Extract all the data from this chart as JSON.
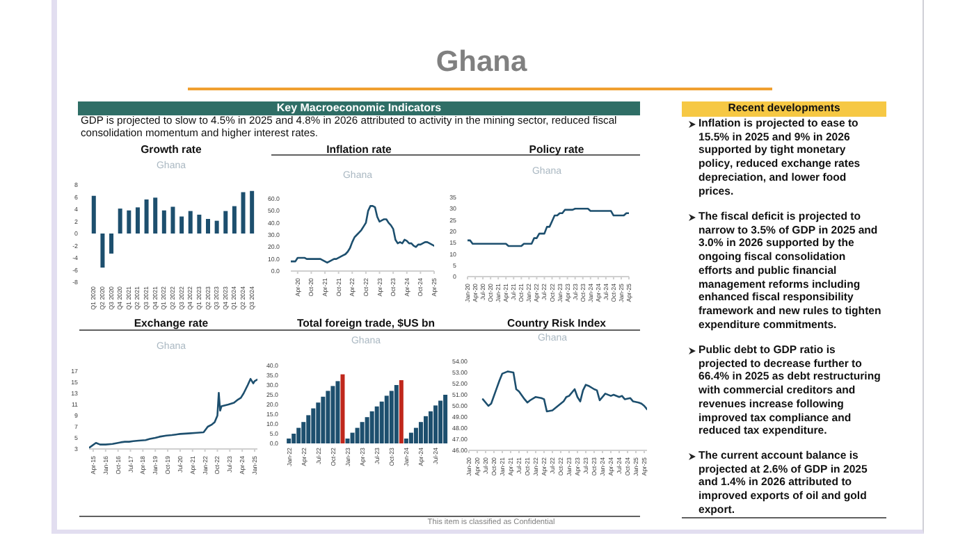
{
  "chart_data": [
    {
      "type": "other",
      "title": "Ghana",
      "subtitle": "Key Macroeconomic Indicators",
      "annotations": [
        "GDP is projected to slow to 4.5% in 2025 and 4.8% in 2026 attributed to activity in the mining sector, reduced fiscal consolidation momentum and higher interest rates.",
        "This item is classified as Confidential"
      ]
    },
    {
      "type": "bar",
      "title": "Growth rate",
      "annotations": [
        "Ghana"
      ],
      "categories": [
        "Q1 2020",
        "Q2 2020",
        "Q3 2020",
        "Q4 2020",
        "Q1 2021",
        "Q2 2021",
        "Q3 2021",
        "Q4 2021",
        "Q1 2022",
        "Q2 2022",
        "Q3 2022",
        "Q4 2022",
        "Q1 2023",
        "Q2 2023",
        "Q3 2023",
        "Q4 2023",
        "Q1 2024",
        "Q2 2024",
        "Q3 2024"
      ],
      "values": [
        6.2,
        -5.6,
        -3.3,
        4.1,
        3.8,
        4.3,
        5.6,
        5.9,
        3.8,
        4.4,
        2.8,
        3.7,
        3.1,
        2.4,
        2.1,
        3.7,
        4.5,
        6.8,
        7.0
      ],
      "color": "#1d4f6e",
      "ylim": [
        -8,
        8
      ],
      "yticks": [
        -8,
        -6,
        -4,
        -2,
        0,
        2,
        4,
        6,
        8
      ]
    },
    {
      "type": "line",
      "title": "Inflation rate",
      "annotations": [
        "Ghana"
      ],
      "x": [
        "2020-01",
        "2020-02",
        "2020-03",
        "2020-04",
        "2020-05",
        "2020-06",
        "2020-07",
        "2020-08",
        "2020-09",
        "2020-10",
        "2020-11",
        "2020-12",
        "2021-01",
        "2021-02",
        "2021-03",
        "2021-04",
        "2021-05",
        "2021-06",
        "2021-07",
        "2021-08",
        "2021-09",
        "2021-10",
        "2021-11",
        "2021-12",
        "2022-01",
        "2022-02",
        "2022-03",
        "2022-04",
        "2022-05",
        "2022-06",
        "2022-07",
        "2022-08",
        "2022-09",
        "2022-10",
        "2022-11",
        "2022-12",
        "2023-01",
        "2023-02",
        "2023-03",
        "2023-04",
        "2023-05",
        "2023-06",
        "2023-07",
        "2023-08",
        "2023-09",
        "2023-10",
        "2023-11",
        "2023-12",
        "2024-01",
        "2024-02",
        "2024-03",
        "2024-04",
        "2024-05",
        "2024-06",
        "2024-07",
        "2024-08",
        "2024-09",
        "2024-10",
        "2024-11",
        "2024-12",
        "2025-01",
        "2025-02",
        "2025-03",
        "2025-04"
      ],
      "values": [
        8,
        8,
        8,
        11,
        11,
        11,
        11,
        10,
        10,
        10,
        10,
        10,
        10,
        10,
        9,
        8,
        7,
        8,
        9,
        10,
        10,
        11,
        12,
        13,
        14,
        16,
        19,
        24,
        28,
        30,
        32,
        34,
        37,
        40,
        50,
        54,
        54,
        53,
        45,
        41,
        42,
        43,
        43,
        40,
        38,
        35,
        26,
        23,
        24,
        23,
        26,
        25,
        23,
        23,
        21,
        20,
        22,
        22,
        23,
        24,
        24,
        23,
        22,
        21
      ],
      "color": "#1d4f6e",
      "xlim": [
        "2020-01",
        "2025-04"
      ],
      "xticks": [
        {
          "value": "2020-04",
          "label": "Apr-20"
        },
        {
          "value": "2020-10",
          "label": "Oct-20"
        },
        {
          "value": "2021-04",
          "label": "Apr-21"
        },
        {
          "value": "2021-10",
          "label": "Oct-21"
        },
        {
          "value": "2022-04",
          "label": "Apr-22"
        },
        {
          "value": "2022-10",
          "label": "Oct-22"
        },
        {
          "value": "2023-04",
          "label": "Apr-23"
        },
        {
          "value": "2023-10",
          "label": "Oct-23"
        },
        {
          "value": "2024-04",
          "label": "Apr-24"
        },
        {
          "value": "2024-10",
          "label": "Oct-24"
        },
        {
          "value": "2025-04",
          "label": "Apr-25"
        }
      ],
      "ylim": [
        0,
        60
      ],
      "yticks": [
        {
          "value": 0,
          "label": "0.0"
        },
        {
          "value": 10,
          "label": "10.0"
        },
        {
          "value": 20,
          "label": "20.0"
        },
        {
          "value": 30,
          "label": "30.0"
        },
        {
          "value": 40,
          "label": "40.0"
        },
        {
          "value": 50,
          "label": "50.0"
        },
        {
          "value": 60,
          "label": "60.0"
        }
      ]
    },
    {
      "type": "line",
      "title": "Policy rate",
      "annotations": [
        "Ghana"
      ],
      "x": [
        "2020-01",
        "2020-02",
        "2020-03",
        "2020-04",
        "2020-05",
        "2020-06",
        "2020-07",
        "2020-08",
        "2020-09",
        "2020-10",
        "2020-11",
        "2020-12",
        "2021-01",
        "2021-02",
        "2021-03",
        "2021-04",
        "2021-05",
        "2021-06",
        "2021-07",
        "2021-08",
        "2021-09",
        "2021-10",
        "2021-11",
        "2021-12",
        "2022-01",
        "2022-02",
        "2022-03",
        "2022-04",
        "2022-05",
        "2022-06",
        "2022-07",
        "2022-08",
        "2022-09",
        "2022-10",
        "2022-11",
        "2022-12",
        "2023-01",
        "2023-02",
        "2023-03",
        "2023-04",
        "2023-05",
        "2023-06",
        "2023-07",
        "2023-08",
        "2023-09",
        "2023-10",
        "2023-11",
        "2023-12",
        "2024-01",
        "2024-02",
        "2024-03",
        "2024-04",
        "2024-05",
        "2024-06",
        "2024-07",
        "2024-08",
        "2024-09",
        "2024-10",
        "2024-11",
        "2024-12",
        "2025-01",
        "2025-02",
        "2025-03",
        "2025-04"
      ],
      "values": [
        16,
        16,
        14.5,
        14.5,
        14.5,
        14.5,
        14.5,
        14.5,
        14.5,
        14.5,
        14.5,
        14.5,
        14.5,
        14.5,
        14.5,
        14.5,
        13.5,
        13.5,
        13.5,
        13.5,
        13.5,
        13.5,
        14.5,
        14.5,
        14.5,
        14.5,
        17,
        17,
        19,
        19,
        19,
        22,
        22,
        24.5,
        27,
        27,
        28,
        28,
        29.5,
        29.5,
        29.5,
        29.5,
        30,
        30,
        30,
        30,
        30,
        30,
        29,
        29,
        29,
        29,
        29,
        29,
        29,
        29,
        29,
        27,
        27,
        27,
        27,
        27,
        28,
        28
      ],
      "color": "#1d4f6e",
      "xlim": [
        "2020-01",
        "2025-04"
      ],
      "xticks": [
        {
          "value": "2020-01",
          "label": "Jan-20"
        },
        {
          "value": "2020-04",
          "label": "Apr-20"
        },
        {
          "value": "2020-07",
          "label": "Jul-20"
        },
        {
          "value": "2020-10",
          "label": "Oct-20"
        },
        {
          "value": "2021-01",
          "label": "Jan-21"
        },
        {
          "value": "2021-04",
          "label": "Apr-21"
        },
        {
          "value": "2021-07",
          "label": "Jul-21"
        },
        {
          "value": "2021-10",
          "label": "Oct-21"
        },
        {
          "value": "2022-01",
          "label": "Jan-22"
        },
        {
          "value": "2022-04",
          "label": "Apr-22"
        },
        {
          "value": "2022-07",
          "label": "Jul-22"
        },
        {
          "value": "2022-10",
          "label": "Oct-22"
        },
        {
          "value": "2023-01",
          "label": "Jan-23"
        },
        {
          "value": "2023-04",
          "label": "Apr-23"
        },
        {
          "value": "2023-07",
          "label": "Jul-23"
        },
        {
          "value": "2023-10",
          "label": "Oct-23"
        },
        {
          "value": "2024-01",
          "label": "Jan-24"
        },
        {
          "value": "2024-04",
          "label": "Apr-24"
        },
        {
          "value": "2024-07",
          "label": "Jul-24"
        },
        {
          "value": "2024-10",
          "label": "Oct-24"
        },
        {
          "value": "2025-01",
          "label": "Jan-25"
        },
        {
          "value": "2025-04",
          "label": "Apr-25"
        }
      ],
      "ylim": [
        0,
        35
      ],
      "yticks": [
        0,
        5,
        10,
        15,
        20,
        25,
        30,
        35
      ]
    },
    {
      "type": "line",
      "title": "Exchange rate",
      "annotations": [
        "Ghana"
      ],
      "x": [
        "2015-01",
        "2015-06",
        "2015-09",
        "2016-01",
        "2016-06",
        "2016-12",
        "2017-03",
        "2017-06",
        "2017-09",
        "2018-01",
        "2018-06",
        "2018-09",
        "2019-01",
        "2019-04",
        "2019-09",
        "2020-01",
        "2020-04",
        "2020-07",
        "2021-01",
        "2021-07",
        "2021-12",
        "2022-03",
        "2022-06",
        "2022-08",
        "2022-10",
        "2022-11",
        "2022-12",
        "2023-01",
        "2023-06",
        "2023-10",
        "2024-01",
        "2024-03",
        "2024-05",
        "2024-08",
        "2024-10",
        "2024-11",
        "2024-12",
        "2025-01",
        "2025-03"
      ],
      "values": [
        3.2,
        4.1,
        3.8,
        3.8,
        3.9,
        4.2,
        4.3,
        4.3,
        4.4,
        4.5,
        4.6,
        4.8,
        5.0,
        5.2,
        5.4,
        5.5,
        5.6,
        5.7,
        5.8,
        5.9,
        6.0,
        7.0,
        7.4,
        7.8,
        9.0,
        13.1,
        9.9,
        10.7,
        11.0,
        11.3,
        11.9,
        12.2,
        13.0,
        14.5,
        15.6,
        15.2,
        14.8,
        15.2,
        15.5
      ],
      "color": "#1d4f6e",
      "xlim": [
        "2015-01",
        "2025-03"
      ],
      "xticks": [
        {
          "value": "2015-04",
          "label": "Apr-15"
        },
        {
          "value": "2016-01",
          "label": "Jan-16"
        },
        {
          "value": "2016-10",
          "label": "Oct-16"
        },
        {
          "value": "2017-07",
          "label": "Jul-17"
        },
        {
          "value": "2018-04",
          "label": "Apr-18"
        },
        {
          "value": "2019-01",
          "label": "Jan-19"
        },
        {
          "value": "2019-10",
          "label": "Oct-19"
        },
        {
          "value": "2020-07",
          "label": "Jul-20"
        },
        {
          "value": "2021-04",
          "label": "Apr-21"
        },
        {
          "value": "2022-01",
          "label": "Jan-22"
        },
        {
          "value": "2022-10",
          "label": "Oct-22"
        },
        {
          "value": "2023-07",
          "label": "Jul-23"
        },
        {
          "value": "2024-04",
          "label": "Apr-24"
        },
        {
          "value": "2025-01",
          "label": "Jan-25"
        }
      ],
      "ylim": [
        3,
        17
      ],
      "yticks": [
        3,
        5,
        7,
        9,
        11,
        13,
        15,
        17
      ]
    },
    {
      "type": "bar",
      "title": "Total foreign trade, $US bn",
      "annotations": [
        "Ghana"
      ],
      "categories": [
        "Jan-22",
        null,
        null,
        "Apr-22",
        null,
        null,
        "Jul-22",
        null,
        null,
        "Oct-22",
        null,
        null,
        "Jan-23",
        null,
        null,
        "Apr-23",
        null,
        null,
        "Jul-23",
        null,
        null,
        "Oct-23",
        null,
        null,
        "Jan-24",
        null,
        null,
        "Apr-24",
        null,
        null,
        "Jul-24",
        null,
        null
      ],
      "values": [
        2.5,
        5,
        8,
        11,
        14.5,
        18,
        21,
        24,
        27,
        29.5,
        32,
        35.5,
        2.5,
        5.5,
        8,
        11,
        13.5,
        16.5,
        19,
        21.5,
        24.5,
        27,
        30,
        32.5,
        2.5,
        5.5,
        8,
        11,
        14,
        16.5,
        19.5,
        22,
        25
      ],
      "colors": [
        "#1d4f6e",
        "#1d4f6e",
        "#1d4f6e",
        "#1d4f6e",
        "#1d4f6e",
        "#1d4f6e",
        "#1d4f6e",
        "#1d4f6e",
        "#1d4f6e",
        "#1d4f6e",
        "#1d4f6e",
        "#c0281c",
        "#1d4f6e",
        "#1d4f6e",
        "#1d4f6e",
        "#1d4f6e",
        "#1d4f6e",
        "#1d4f6e",
        "#1d4f6e",
        "#1d4f6e",
        "#1d4f6e",
        "#1d4f6e",
        "#1d4f6e",
        "#c0281c",
        "#1d4f6e",
        "#1d4f6e",
        "#1d4f6e",
        "#1d4f6e",
        "#1d4f6e",
        "#1d4f6e",
        "#1d4f6e",
        "#1d4f6e",
        "#1d4f6e"
      ],
      "ylim": [
        0,
        40
      ],
      "yticks": [
        {
          "value": 0,
          "label": "0.0"
        },
        {
          "value": 5,
          "label": "5.0"
        },
        {
          "value": 10,
          "label": "10.0"
        },
        {
          "value": 15,
          "label": "15.0"
        },
        {
          "value": 20,
          "label": "20.0"
        },
        {
          "value": 25,
          "label": "25.0"
        },
        {
          "value": 30,
          "label": "30.0"
        },
        {
          "value": 35,
          "label": "35.0"
        },
        {
          "value": 40,
          "label": "40.0"
        }
      ]
    },
    {
      "type": "line",
      "title": "Country Risk Index",
      "annotations": [
        "Ghana"
      ],
      "x": [
        "2020-06",
        "2020-08",
        "2020-09",
        "2020-11",
        "2020-12",
        "2021-01",
        "2021-03",
        "2021-05",
        "2021-06",
        "2021-07",
        "2021-09",
        "2021-10",
        "2021-11",
        "2022-01",
        "2022-03",
        "2022-04",
        "2022-05",
        "2022-07",
        "2022-09",
        "2022-11",
        "2022-12",
        "2023-01",
        "2023-03",
        "2023-04",
        "2023-05",
        "2023-06",
        "2023-07",
        "2023-08",
        "2023-10",
        "2023-11",
        "2023-12",
        "2024-02",
        "2024-04",
        "2024-05",
        "2024-07",
        "2024-08",
        "2024-09",
        "2024-11",
        "2024-12",
        "2025-02",
        "2025-03",
        "2025-04",
        "2025-05"
      ],
      "values": [
        50.6,
        50.0,
        50.2,
        51.6,
        52.3,
        52.9,
        53.1,
        53.0,
        51.5,
        51.3,
        50.6,
        50.3,
        50.5,
        50.8,
        50.7,
        50.6,
        49.5,
        49.6,
        50.0,
        50.4,
        50.8,
        50.9,
        51.5,
        50.8,
        50.4,
        51.4,
        51.9,
        51.8,
        51.5,
        51.4,
        50.5,
        51.1,
        50.9,
        51.0,
        50.8,
        50.9,
        50.6,
        50.7,
        50.4,
        50.3,
        50.2,
        50.0,
        49.7
      ],
      "color": "#1d4f6e",
      "xlim": [
        "2020-01",
        "2025-05"
      ],
      "xticks": [
        {
          "value": "2020-01",
          "label": "Jan-20"
        },
        {
          "value": "2020-04",
          "label": "Apr-20"
        },
        {
          "value": "2020-07",
          "label": "Jul-20"
        },
        {
          "value": "2020-10",
          "label": "Oct-20"
        },
        {
          "value": "2021-01",
          "label": "Jan-21"
        },
        {
          "value": "2021-04",
          "label": "Apr-21"
        },
        {
          "value": "2021-07",
          "label": "Jul-21"
        },
        {
          "value": "2021-10",
          "label": "Oct-21"
        },
        {
          "value": "2022-01",
          "label": "Jan-22"
        },
        {
          "value": "2022-04",
          "label": "Apr-22"
        },
        {
          "value": "2022-07",
          "label": "Jul-22"
        },
        {
          "value": "2022-10",
          "label": "Oct-22"
        },
        {
          "value": "2023-01",
          "label": "Jan-23"
        },
        {
          "value": "2023-04",
          "label": "Apr-23"
        },
        {
          "value": "2023-07",
          "label": "Jul-23"
        },
        {
          "value": "2023-10",
          "label": "Oct-23"
        },
        {
          "value": "2024-01",
          "label": "Jan-24"
        },
        {
          "value": "2024-04",
          "label": "Apr-24"
        },
        {
          "value": "2024-07",
          "label": "Jul-24"
        },
        {
          "value": "2024-10",
          "label": "Oct-24"
        },
        {
          "value": "2025-01",
          "label": "Jan-25"
        },
        {
          "value": "2025-04",
          "label": "Apr-25"
        }
      ],
      "ylim": [
        46,
        54
      ],
      "yticks": [
        {
          "value": 46,
          "label": "46.00"
        },
        {
          "value": 47,
          "label": "47.00"
        },
        {
          "value": 48,
          "label": "48.00"
        },
        {
          "value": 49,
          "label": "49.00"
        },
        {
          "value": 50,
          "label": "50.00"
        },
        {
          "value": 51,
          "label": "51.00"
        },
        {
          "value": 52,
          "label": "52.00"
        },
        {
          "value": 53,
          "label": "53.00"
        },
        {
          "value": 54,
          "label": "54.00"
        }
      ]
    },
    {
      "type": "other",
      "title": "Recent developments",
      "annotations": [
        "Inflation is projected to ease to 15.5% in 2025 and 9% in 2026 supported by tight monetary policy, reduced exchange rates depreciation, and lower food prices.",
        "The fiscal deficit is projected to narrow to 3.5% of GDP in 2025 and 3.0% in 2026 supported by the ongoing fiscal consolidation efforts and public financial management reforms including enhanced fiscal responsibility framework and new rules to tighten expenditure commitments.",
        "Public debt to GDP ratio is projected to decrease further to 66.4% in 2025 as debt restructuring with commercial creditors and revenues increase following improved tax compliance and reduced tax expenditure.",
        "The current account balance is projected at 2.6% of GDP in 2025 and 1.4% in 2026 attributed to improved exports of oil and gold export."
      ]
    }
  ]
}
